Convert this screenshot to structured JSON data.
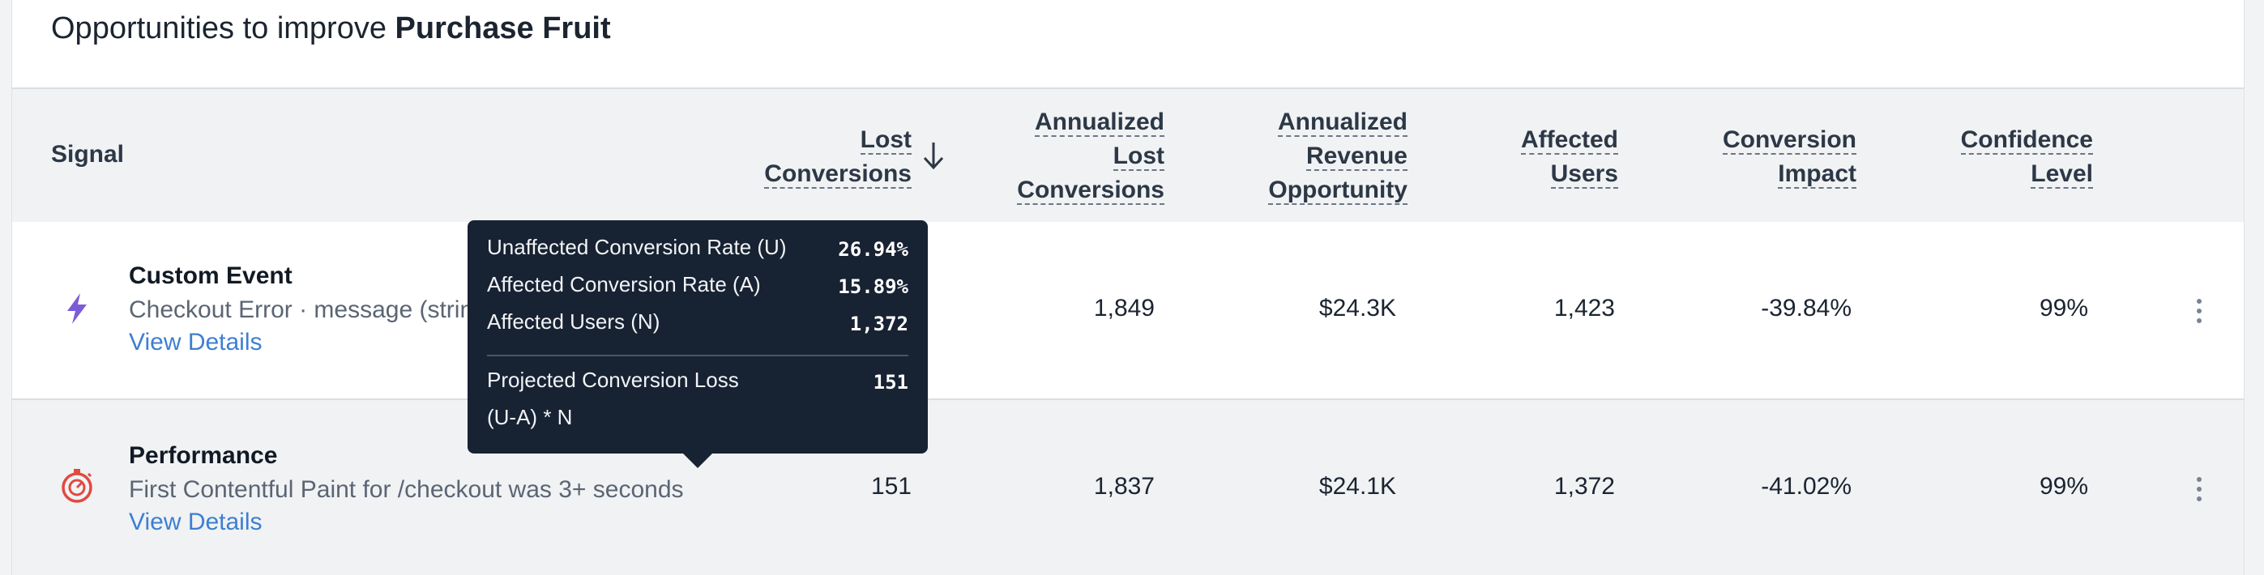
{
  "header": {
    "title_prefix": "Opportunities to improve",
    "title_target": "Purchase Fruit"
  },
  "table": {
    "columns": {
      "signal": "Signal",
      "lost_conversions": [
        "Lost",
        "Conversions"
      ],
      "annualized_lost": [
        "Annualized",
        "Lost",
        "Conversions"
      ],
      "annualized_revenue": [
        "Annualized",
        "Revenue",
        "Opportunity"
      ],
      "affected_users": [
        "Affected",
        "Users"
      ],
      "conversion_impact": [
        "Conversion",
        "Impact"
      ],
      "confidence": [
        "Confidence",
        "Level"
      ]
    },
    "sort": {
      "column": "lost_conversions",
      "direction": "descending"
    },
    "rows": [
      {
        "type": "Custom Event",
        "icon": "lightning-bolt-icon",
        "icon_color": "#7b5cd6",
        "description": "Checkout Error · message (strin",
        "link": "View Details",
        "lost_conversions": "",
        "annualized_lost": "1,849",
        "annualized_revenue": "$24.3K",
        "affected_users": "1,423",
        "conversion_impact": "-39.84%",
        "confidence": "99%"
      },
      {
        "type": "Performance",
        "icon": "stopwatch-icon",
        "icon_color": "#e04a3f",
        "description": "First Contentful Paint for /checkout was 3+ seconds",
        "link": "View Details",
        "lost_conversions": "151",
        "annualized_lost": "1,837",
        "annualized_revenue": "$24.1K",
        "affected_users": "1,372",
        "conversion_impact": "-41.02%",
        "confidence": "99%"
      }
    ]
  },
  "tooltip": {
    "lines": [
      {
        "label": "Unaffected Conversion Rate (U)",
        "value": "26.94%"
      },
      {
        "label": "Affected Conversion Rate (A)",
        "value": "15.89%"
      },
      {
        "label": "Affected Users (N)",
        "value": "1,372"
      }
    ],
    "result_label": "Projected Conversion Loss",
    "result_value": "151",
    "formula": "(U-A) * N"
  }
}
